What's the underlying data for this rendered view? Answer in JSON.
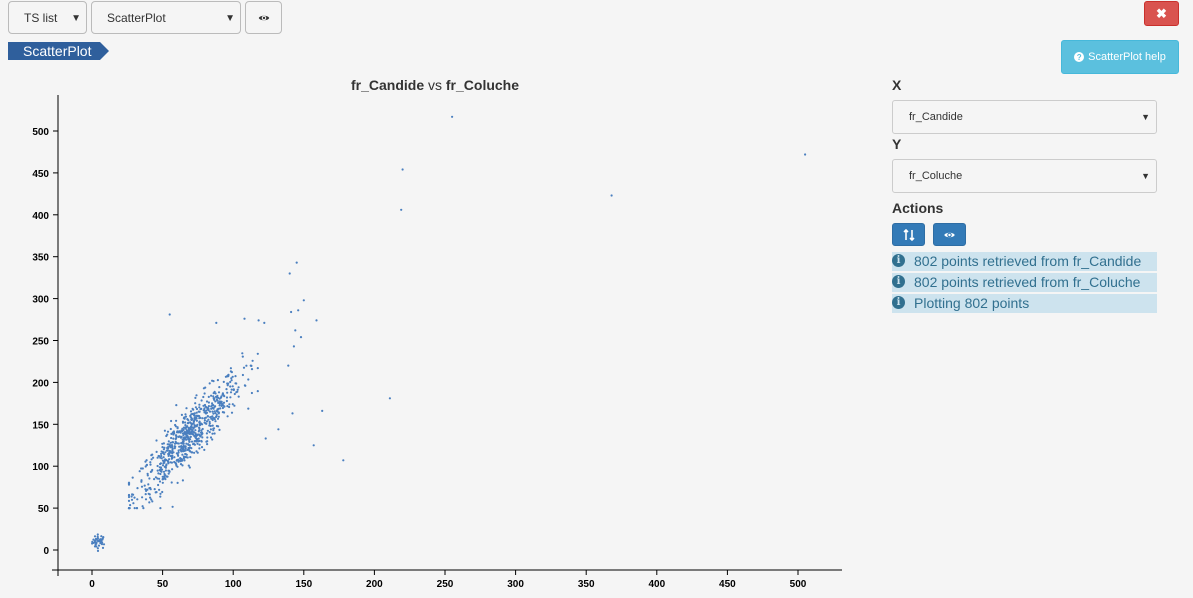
{
  "toolbar": {
    "ts_list_label": "TS list",
    "view_select_value": "ScatterPlot",
    "eye_icon": "eye-icon",
    "close_icon": "times-icon"
  },
  "breadcrumb": {
    "label": "ScatterPlot"
  },
  "help_button": {
    "label": "ScatterPlot help",
    "icon": "question-circle-icon"
  },
  "chart_title": {
    "x_name": "fr_Candide",
    "vs": "vs",
    "y_name": "fr_Coluche"
  },
  "panel": {
    "x_label": "X",
    "x_value": "fr_Candide",
    "y_label": "Y",
    "y_value": "fr_Coluche",
    "actions_label": "Actions",
    "swap_icon": "swap-axes-icon",
    "view_icon": "eye-icon"
  },
  "log": [
    "802 points retrieved from fr_Candide",
    "802 points retrieved from fr_Coluche",
    "Plotting 802 points"
  ],
  "colors": {
    "point": "#4a7fbf",
    "primary": "#337ab7",
    "danger": "#d9534f",
    "info": "#5bc0de"
  },
  "chart_data": {
    "type": "scatter",
    "title": "fr_Candide vs fr_Coluche",
    "xlabel": "",
    "ylabel": "",
    "xlim": [
      -12,
      530
    ],
    "ylim": [
      -25,
      545
    ],
    "xticks": [
      0,
      50,
      100,
      150,
      200,
      250,
      300,
      350,
      400,
      450,
      500
    ],
    "yticks": [
      0,
      50,
      100,
      150,
      200,
      250,
      300,
      350,
      400,
      450,
      500
    ],
    "total_points": 802,
    "outliers": [
      [
        255,
        517
      ],
      [
        220,
        454
      ],
      [
        219,
        406
      ],
      [
        505,
        472
      ],
      [
        368,
        423
      ],
      [
        55,
        281
      ],
      [
        88,
        271
      ],
      [
        108,
        276
      ],
      [
        118,
        274
      ],
      [
        122,
        271
      ],
      [
        145,
        343
      ],
      [
        140,
        330
      ],
      [
        150,
        298
      ],
      [
        146,
        286
      ],
      [
        159,
        274
      ],
      [
        148,
        254
      ],
      [
        141,
        284
      ],
      [
        144,
        262
      ],
      [
        143,
        243
      ],
      [
        139,
        220
      ],
      [
        163,
        166
      ],
      [
        211,
        181
      ],
      [
        178,
        107
      ],
      [
        157,
        125
      ],
      [
        132,
        144
      ],
      [
        142,
        163
      ],
      [
        123,
        133
      ]
    ],
    "cluster_small": {
      "x_center": 5,
      "y_center": 10,
      "x_spread": 4,
      "y_spread": 7,
      "count": 40
    },
    "cluster_main": {
      "x_center": 68,
      "y_center": 135,
      "slope": 1.75,
      "count": 735
    }
  }
}
